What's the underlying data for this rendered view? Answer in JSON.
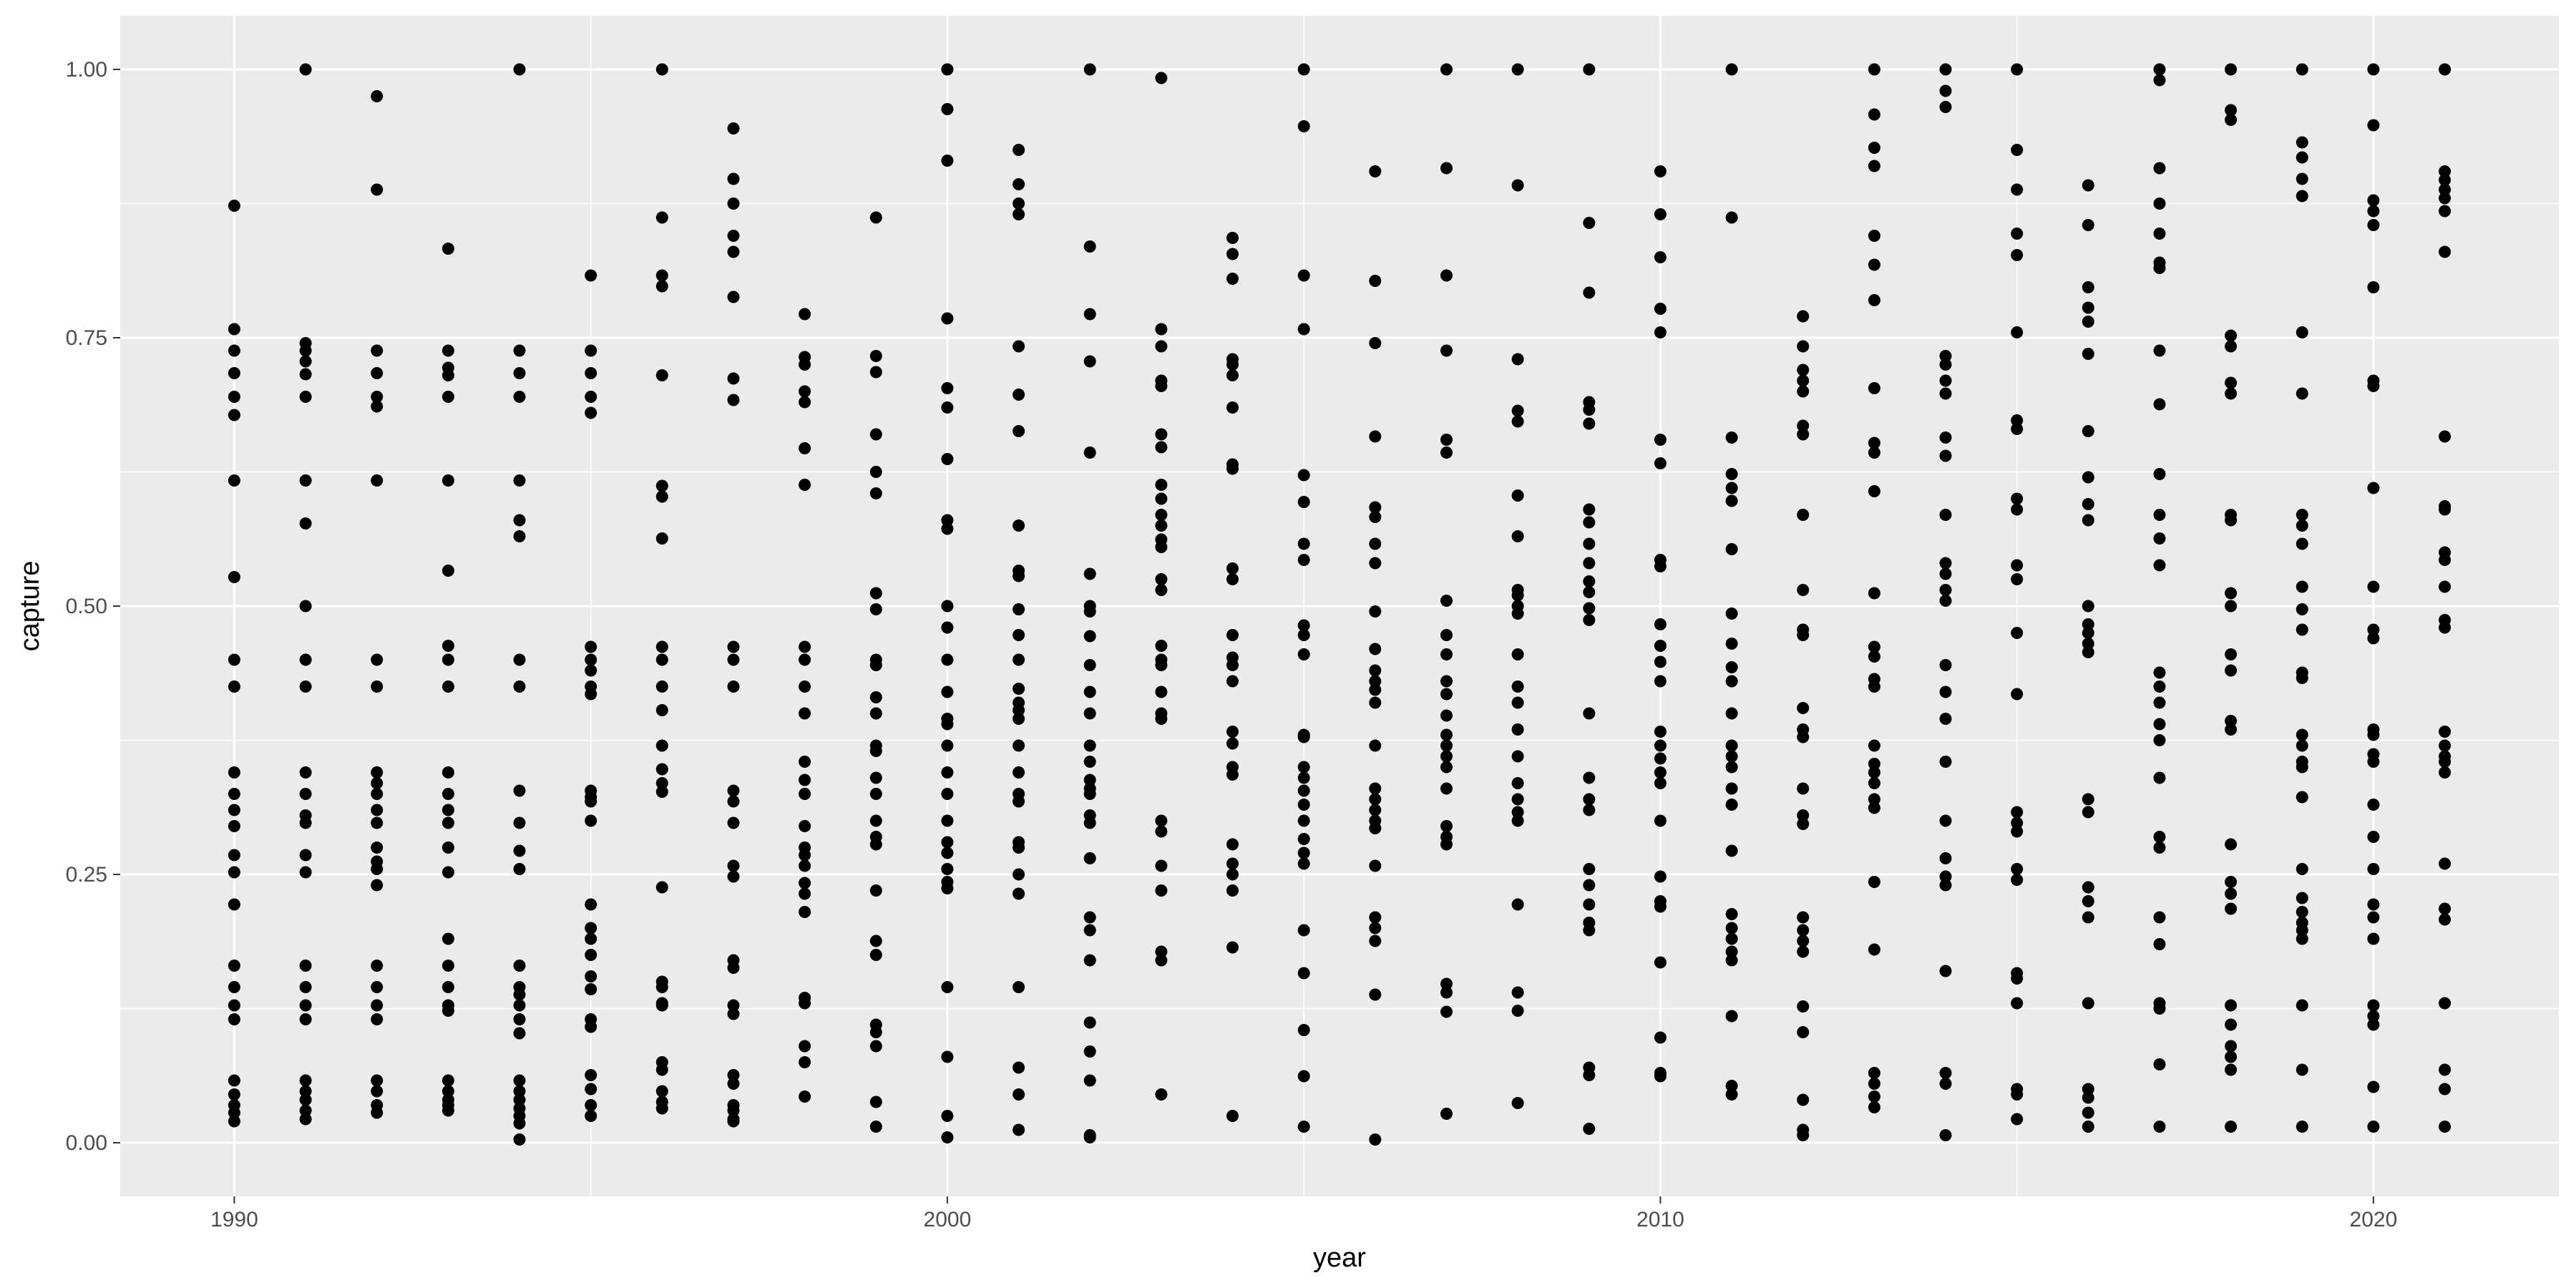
{
  "colors": {
    "panel_background": "#EBEBEB",
    "grid_major": "#FFFFFF",
    "point": "#000000",
    "tick_text": "#4D4D4D",
    "axis_title": "#000000"
  },
  "chart_data": {
    "type": "scatter",
    "title": "",
    "xlabel": "year",
    "ylabel": "capture",
    "xlim": [
      1988.4,
      2022.6
    ],
    "ylim": [
      -0.05,
      1.05
    ],
    "x_ticks": [
      1990,
      2000,
      2010,
      2020
    ],
    "x_tick_labels": [
      "1990",
      "2000",
      "2010",
      "2020"
    ],
    "y_ticks": [
      0,
      0.25,
      0.5,
      0.75,
      1
    ],
    "y_tick_labels": [
      "0.00",
      "0.25",
      "0.50",
      "0.75",
      "1.00"
    ],
    "grid": true,
    "legend": "none",
    "points_by_year": [
      {
        "x": 1990,
        "y": [
          0.873,
          0.758,
          0.738,
          0.717,
          0.695,
          0.678,
          0.617,
          0.527,
          0.45,
          0.425,
          0.345,
          0.325,
          0.31,
          0.295,
          0.268,
          0.252,
          0.222,
          0.165,
          0.145,
          0.128,
          0.115,
          0.058,
          0.045,
          0.035,
          0.028,
          0.02
        ]
      },
      {
        "x": 1991,
        "y": [
          1.0,
          0.745,
          0.738,
          0.728,
          0.716,
          0.695,
          0.617,
          0.577,
          0.5,
          0.45,
          0.425,
          0.345,
          0.325,
          0.305,
          0.298,
          0.268,
          0.252,
          0.165,
          0.145,
          0.128,
          0.115,
          0.058,
          0.048,
          0.04,
          0.03,
          0.022
        ]
      },
      {
        "x": 1992,
        "y": [
          0.975,
          0.888,
          0.738,
          0.717,
          0.695,
          0.686,
          0.617,
          0.45,
          0.425,
          0.345,
          0.335,
          0.325,
          0.31,
          0.298,
          0.275,
          0.262,
          0.255,
          0.24,
          0.165,
          0.145,
          0.128,
          0.115,
          0.058,
          0.048,
          0.035,
          0.028
        ]
      },
      {
        "x": 1993,
        "y": [
          0.833,
          0.738,
          0.722,
          0.715,
          0.695,
          0.617,
          0.533,
          0.463,
          0.45,
          0.425,
          0.345,
          0.325,
          0.31,
          0.298,
          0.275,
          0.252,
          0.19,
          0.165,
          0.145,
          0.128,
          0.123,
          0.058,
          0.048,
          0.04,
          0.035,
          0.03
        ]
      },
      {
        "x": 1994,
        "y": [
          1.0,
          0.738,
          0.717,
          0.695,
          0.617,
          0.58,
          0.565,
          0.45,
          0.425,
          0.328,
          0.298,
          0.272,
          0.255,
          0.165,
          0.145,
          0.138,
          0.128,
          0.115,
          0.102,
          0.058,
          0.048,
          0.04,
          0.032,
          0.025,
          0.018,
          0.003
        ]
      },
      {
        "x": 1995,
        "y": [
          0.808,
          0.738,
          0.717,
          0.695,
          0.68,
          0.462,
          0.45,
          0.44,
          0.425,
          0.418,
          0.328,
          0.322,
          0.318,
          0.3,
          0.222,
          0.2,
          0.19,
          0.175,
          0.155,
          0.143,
          0.115,
          0.108,
          0.063,
          0.05,
          0.035,
          0.025
        ]
      },
      {
        "x": 1996,
        "y": [
          1.0,
          0.862,
          0.808,
          0.798,
          0.715,
          0.612,
          0.602,
          0.563,
          0.462,
          0.45,
          0.425,
          0.403,
          0.37,
          0.348,
          0.335,
          0.327,
          0.238,
          0.15,
          0.145,
          0.13,
          0.128,
          0.075,
          0.068,
          0.048,
          0.038,
          0.032
        ]
      },
      {
        "x": 1997,
        "y": [
          0.945,
          0.898,
          0.875,
          0.845,
          0.83,
          0.788,
          0.712,
          0.692,
          0.462,
          0.45,
          0.425,
          0.328,
          0.318,
          0.298,
          0.258,
          0.248,
          0.17,
          0.163,
          0.128,
          0.12,
          0.063,
          0.055,
          0.035,
          0.03,
          0.022,
          0.02
        ]
      },
      {
        "x": 1998,
        "y": [
          0.772,
          0.732,
          0.725,
          0.7,
          0.69,
          0.647,
          0.613,
          0.462,
          0.45,
          0.425,
          0.4,
          0.355,
          0.338,
          0.325,
          0.295,
          0.275,
          0.268,
          0.258,
          0.242,
          0.232,
          0.215,
          0.135,
          0.13,
          0.09,
          0.075,
          0.043
        ]
      },
      {
        "x": 1999,
        "y": [
          0.862,
          0.733,
          0.718,
          0.66,
          0.625,
          0.605,
          0.512,
          0.497,
          0.45,
          0.445,
          0.415,
          0.4,
          0.37,
          0.365,
          0.34,
          0.325,
          0.3,
          0.285,
          0.278,
          0.235,
          0.188,
          0.175,
          0.11,
          0.103,
          0.09,
          0.038,
          0.015
        ]
      },
      {
        "x": 2000,
        "y": [
          1.0,
          0.963,
          0.915,
          0.768,
          0.703,
          0.685,
          0.637,
          0.58,
          0.572,
          0.5,
          0.48,
          0.45,
          0.42,
          0.395,
          0.39,
          0.37,
          0.345,
          0.325,
          0.3,
          0.28,
          0.27,
          0.255,
          0.243,
          0.237,
          0.145,
          0.08,
          0.025,
          0.005
        ]
      },
      {
        "x": 2001,
        "y": [
          0.925,
          0.893,
          0.875,
          0.865,
          0.742,
          0.697,
          0.663,
          0.575,
          0.533,
          0.528,
          0.497,
          0.473,
          0.45,
          0.423,
          0.41,
          0.403,
          0.395,
          0.37,
          0.345,
          0.325,
          0.318,
          0.28,
          0.275,
          0.25,
          0.232,
          0.145,
          0.07,
          0.045,
          0.012
        ]
      },
      {
        "x": 2002,
        "y": [
          1.0,
          0.835,
          0.772,
          0.728,
          0.643,
          0.53,
          0.5,
          0.495,
          0.472,
          0.445,
          0.42,
          0.4,
          0.37,
          0.355,
          0.338,
          0.33,
          0.325,
          0.305,
          0.298,
          0.265,
          0.21,
          0.198,
          0.17,
          0.112,
          0.085,
          0.058,
          0.007,
          0.005
        ]
      },
      {
        "x": 2003,
        "y": [
          0.992,
          0.758,
          0.742,
          0.71,
          0.705,
          0.66,
          0.648,
          0.613,
          0.6,
          0.585,
          0.575,
          0.562,
          0.555,
          0.525,
          0.515,
          0.463,
          0.45,
          0.445,
          0.42,
          0.4,
          0.395,
          0.3,
          0.29,
          0.258,
          0.235,
          0.178,
          0.17,
          0.045
        ]
      },
      {
        "x": 2004,
        "y": [
          0.843,
          0.828,
          0.805,
          0.73,
          0.725,
          0.715,
          0.685,
          0.632,
          0.628,
          0.535,
          0.525,
          0.473,
          0.452,
          0.445,
          0.43,
          0.383,
          0.372,
          0.35,
          0.343,
          0.278,
          0.26,
          0.25,
          0.235,
          0.182,
          0.025
        ]
      },
      {
        "x": 2005,
        "y": [
          1.0,
          0.947,
          0.808,
          0.758,
          0.622,
          0.597,
          0.558,
          0.543,
          0.482,
          0.473,
          0.455,
          0.38,
          0.378,
          0.35,
          0.34,
          0.328,
          0.315,
          0.3,
          0.283,
          0.27,
          0.26,
          0.198,
          0.158,
          0.105,
          0.062,
          0.015
        ]
      },
      {
        "x": 2006,
        "y": [
          0.905,
          0.803,
          0.745,
          0.658,
          0.592,
          0.583,
          0.558,
          0.54,
          0.495,
          0.46,
          0.44,
          0.43,
          0.422,
          0.41,
          0.37,
          0.33,
          0.32,
          0.31,
          0.3,
          0.293,
          0.258,
          0.21,
          0.2,
          0.188,
          0.138,
          0.003
        ]
      },
      {
        "x": 2007,
        "y": [
          1.0,
          0.908,
          0.808,
          0.738,
          0.655,
          0.643,
          0.505,
          0.473,
          0.455,
          0.43,
          0.418,
          0.398,
          0.38,
          0.37,
          0.36,
          0.35,
          0.33,
          0.295,
          0.285,
          0.278,
          0.148,
          0.14,
          0.122,
          0.027
        ]
      },
      {
        "x": 2008,
        "y": [
          1.0,
          0.892,
          0.73,
          0.682,
          0.672,
          0.603,
          0.565,
          0.515,
          0.51,
          0.5,
          0.493,
          0.455,
          0.425,
          0.41,
          0.385,
          0.36,
          0.335,
          0.32,
          0.308,
          0.3,
          0.222,
          0.14,
          0.123,
          0.037
        ]
      },
      {
        "x": 2009,
        "y": [
          1.0,
          0.857,
          0.792,
          0.69,
          0.683,
          0.67,
          0.59,
          0.578,
          0.558,
          0.54,
          0.523,
          0.513,
          0.498,
          0.487,
          0.4,
          0.34,
          0.32,
          0.31,
          0.255,
          0.24,
          0.222,
          0.205,
          0.198,
          0.07,
          0.063,
          0.013
        ]
      },
      {
        "x": 2010,
        "y": [
          0.905,
          0.865,
          0.825,
          0.777,
          0.755,
          0.655,
          0.633,
          0.543,
          0.537,
          0.483,
          0.463,
          0.448,
          0.43,
          0.383,
          0.37,
          0.358,
          0.345,
          0.335,
          0.3,
          0.248,
          0.225,
          0.22,
          0.168,
          0.098,
          0.065,
          0.062
        ]
      },
      {
        "x": 2011,
        "y": [
          1.0,
          0.862,
          0.657,
          0.623,
          0.61,
          0.598,
          0.553,
          0.493,
          0.465,
          0.443,
          0.43,
          0.4,
          0.37,
          0.36,
          0.35,
          0.33,
          0.315,
          0.272,
          0.213,
          0.2,
          0.19,
          0.178,
          0.17,
          0.118,
          0.053,
          0.045
        ]
      },
      {
        "x": 2012,
        "y": [
          0.77,
          0.742,
          0.72,
          0.71,
          0.7,
          0.668,
          0.66,
          0.585,
          0.515,
          0.478,
          0.473,
          0.405,
          0.385,
          0.378,
          0.33,
          0.305,
          0.297,
          0.21,
          0.198,
          0.188,
          0.178,
          0.127,
          0.103,
          0.04,
          0.012,
          0.007
        ]
      },
      {
        "x": 2013,
        "y": [
          1.0,
          0.958,
          0.927,
          0.91,
          0.845,
          0.818,
          0.785,
          0.703,
          0.652,
          0.643,
          0.607,
          0.512,
          0.462,
          0.453,
          0.432,
          0.425,
          0.37,
          0.353,
          0.345,
          0.335,
          0.32,
          0.312,
          0.243,
          0.18,
          0.065,
          0.055,
          0.043,
          0.033
        ]
      },
      {
        "x": 2014,
        "y": [
          1.0,
          0.98,
          0.965,
          0.733,
          0.725,
          0.71,
          0.698,
          0.657,
          0.64,
          0.585,
          0.54,
          0.53,
          0.515,
          0.505,
          0.445,
          0.42,
          0.395,
          0.355,
          0.3,
          0.265,
          0.248,
          0.24,
          0.16,
          0.065,
          0.055,
          0.007
        ]
      },
      {
        "x": 2015,
        "y": [
          1.0,
          0.925,
          0.888,
          0.847,
          0.827,
          0.755,
          0.673,
          0.665,
          0.6,
          0.59,
          0.538,
          0.525,
          0.475,
          0.418,
          0.308,
          0.298,
          0.29,
          0.255,
          0.245,
          0.158,
          0.153,
          0.13,
          0.05,
          0.045,
          0.022
        ]
      },
      {
        "x": 2016,
        "y": [
          0.892,
          0.855,
          0.797,
          0.778,
          0.765,
          0.735,
          0.663,
          0.62,
          0.595,
          0.58,
          0.5,
          0.483,
          0.475,
          0.465,
          0.457,
          0.32,
          0.308,
          0.238,
          0.225,
          0.21,
          0.13,
          0.05,
          0.042,
          0.028,
          0.015
        ]
      },
      {
        "x": 2017,
        "y": [
          1.0,
          0.99,
          0.908,
          0.875,
          0.847,
          0.82,
          0.815,
          0.738,
          0.688,
          0.623,
          0.585,
          0.563,
          0.538,
          0.438,
          0.425,
          0.41,
          0.39,
          0.375,
          0.34,
          0.285,
          0.275,
          0.21,
          0.185,
          0.13,
          0.125,
          0.073,
          0.015
        ]
      },
      {
        "x": 2018,
        "y": [
          1.0,
          0.962,
          0.953,
          0.752,
          0.742,
          0.708,
          0.698,
          0.585,
          0.58,
          0.512,
          0.5,
          0.455,
          0.44,
          0.393,
          0.385,
          0.278,
          0.243,
          0.232,
          0.218,
          0.128,
          0.11,
          0.09,
          0.08,
          0.068,
          0.015
        ]
      },
      {
        "x": 2019,
        "y": [
          1.0,
          0.932,
          0.918,
          0.898,
          0.882,
          0.755,
          0.698,
          0.585,
          0.575,
          0.558,
          0.518,
          0.497,
          0.478,
          0.438,
          0.433,
          0.38,
          0.37,
          0.355,
          0.35,
          0.322,
          0.255,
          0.228,
          0.215,
          0.205,
          0.198,
          0.19,
          0.128,
          0.068,
          0.015
        ]
      },
      {
        "x": 2020,
        "y": [
          1.0,
          0.948,
          0.878,
          0.868,
          0.855,
          0.797,
          0.71,
          0.705,
          0.61,
          0.518,
          0.478,
          0.47,
          0.385,
          0.38,
          0.362,
          0.355,
          0.315,
          0.285,
          0.255,
          0.222,
          0.21,
          0.19,
          0.128,
          0.118,
          0.11,
          0.052,
          0.015
        ]
      },
      {
        "x": 2021,
        "y": [
          1.0,
          0.905,
          0.897,
          0.888,
          0.88,
          0.868,
          0.83,
          0.658,
          0.593,
          0.59,
          0.55,
          0.543,
          0.518,
          0.487,
          0.48,
          0.383,
          0.37,
          0.36,
          0.355,
          0.345,
          0.26,
          0.218,
          0.208,
          0.13,
          0.068,
          0.05,
          0.015
        ]
      }
    ]
  }
}
